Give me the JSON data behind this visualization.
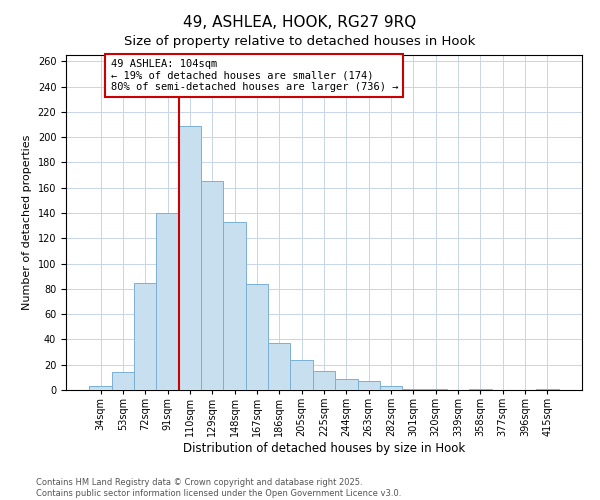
{
  "title": "49, ASHLEA, HOOK, RG27 9RQ",
  "subtitle": "Size of property relative to detached houses in Hook",
  "xlabel": "Distribution of detached houses by size in Hook",
  "ylabel": "Number of detached properties",
  "bar_labels": [
    "34sqm",
    "53sqm",
    "72sqm",
    "91sqm",
    "110sqm",
    "129sqm",
    "148sqm",
    "167sqm",
    "186sqm",
    "205sqm",
    "225sqm",
    "244sqm",
    "263sqm",
    "282sqm",
    "301sqm",
    "320sqm",
    "339sqm",
    "358sqm",
    "377sqm",
    "396sqm",
    "415sqm"
  ],
  "bar_values": [
    3,
    14,
    85,
    140,
    209,
    165,
    133,
    84,
    37,
    24,
    15,
    9,
    7,
    3,
    1,
    1,
    0,
    1,
    0,
    0,
    1
  ],
  "bar_color": "#c8dff0",
  "bar_edge_color": "#7ab0d4",
  "background_color": "#ffffff",
  "grid_color": "#c8d4e8",
  "vline_index": 4,
  "vline_color": "#cc0000",
  "annotation_text": "49 ASHLEA: 104sqm\n← 19% of detached houses are smaller (174)\n80% of semi-detached houses are larger (736) →",
  "ylim": [
    0,
    265
  ],
  "yticks": [
    0,
    20,
    40,
    60,
    80,
    100,
    120,
    140,
    160,
    180,
    200,
    220,
    240,
    260
  ],
  "footnote1": "Contains HM Land Registry data © Crown copyright and database right 2025.",
  "footnote2": "Contains public sector information licensed under the Open Government Licence v3.0.",
  "title_fontsize": 11,
  "subtitle_fontsize": 9.5,
  "xlabel_fontsize": 8.5,
  "ylabel_fontsize": 8,
  "tick_fontsize": 7,
  "annotation_fontsize": 7.5,
  "footnote_fontsize": 6
}
